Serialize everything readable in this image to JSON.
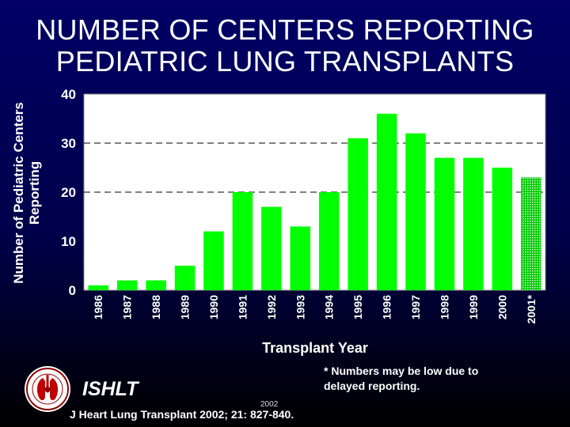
{
  "slide": {
    "title_line1": "NUMBER OF CENTERS REPORTING",
    "title_line2": "PEDIATRIC LUNG TRANSPLANTS",
    "footnote": "* Numbers may be low due to delayed reporting.",
    "org": "ISHLT",
    "citation": "J Heart Lung Transplant 2002; 21: 827-840.",
    "small_year": "2002",
    "logo_icon": "ishlt-seal-icon"
  },
  "chart_data": {
    "type": "bar",
    "title": "NUMBER OF CENTERS REPORTING PEDIATRIC LUNG TRANSPLANTS",
    "xlabel": "Transplant Year",
    "ylabel_lines": [
      "Number of Pediatric Centers",
      "Reporting"
    ],
    "categories": [
      "1986",
      "1987",
      "1988",
      "1989",
      "1990",
      "1991",
      "1992",
      "1993",
      "1994",
      "1995",
      "1996",
      "1997",
      "1998",
      "1999",
      "2000",
      "2001*"
    ],
    "values": [
      1,
      2,
      2,
      5,
      12,
      20,
      17,
      13,
      20,
      31,
      36,
      32,
      27,
      27,
      25,
      23
    ],
    "partial": [
      false,
      false,
      false,
      false,
      false,
      false,
      false,
      false,
      false,
      false,
      false,
      false,
      false,
      false,
      false,
      true
    ],
    "ylim": [
      0,
      40
    ],
    "yticks": [
      0,
      10,
      20,
      30,
      40
    ],
    "gridlines": [
      20,
      30
    ],
    "colors": {
      "bar": "#00ff00",
      "bar_partial": "#aef0ae",
      "plot_bg": "#ffffff",
      "grid": "#000000",
      "text": "#ffffff"
    }
  }
}
